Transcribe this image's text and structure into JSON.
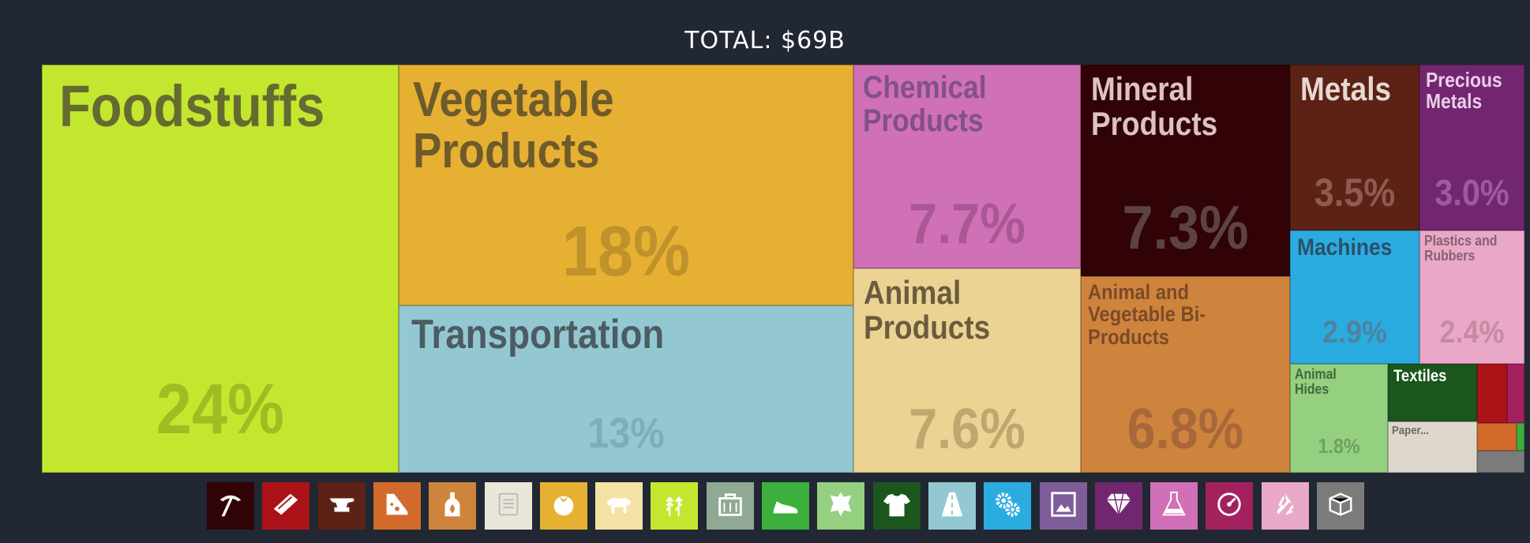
{
  "title": "TOTAL: $69B",
  "chart_data": {
    "type": "treemap",
    "title": "TOTAL: $69B",
    "total": "$69B",
    "categories": [
      {
        "name": "Foodstuffs",
        "share": 24,
        "label": "24%",
        "color": "#c3e72f"
      },
      {
        "name": "Vegetable Products",
        "share": 18,
        "label": "18%",
        "color": "#e6b032"
      },
      {
        "name": "Transportation",
        "share": 13,
        "label": "13%",
        "color": "#93c8d2"
      },
      {
        "name": "Chemical Products",
        "share": 7.7,
        "label": "7.7%",
        "color": "#d070b6"
      },
      {
        "name": "Animal Products",
        "share": 7.6,
        "label": "7.6%",
        "color": "#ebd394"
      },
      {
        "name": "Mineral Products",
        "share": 7.3,
        "label": "7.3%",
        "color": "#310306"
      },
      {
        "name": "Animal and Vegetable Bi-Products",
        "share": 6.8,
        "label": "6.8%",
        "color": "#cf843d"
      },
      {
        "name": "Metals",
        "share": 3.5,
        "label": "3.5%",
        "color": "#5b2215"
      },
      {
        "name": "Precious Metals",
        "share": 3.0,
        "label": "3.0%",
        "color": "#732670"
      },
      {
        "name": "Machines",
        "share": 2.9,
        "label": "2.9%",
        "color": "#2bace0"
      },
      {
        "name": "Plastics and Rubbers",
        "share": 2.4,
        "label": "2.4%",
        "color": "#e9a8c8"
      },
      {
        "name": "Animal Hides",
        "share": 1.8,
        "label": "1.8%",
        "color": "#95cf80"
      },
      {
        "name": "Textiles",
        "share": null,
        "label": "",
        "color": "#1a561d"
      },
      {
        "name": "Paper...",
        "share": null,
        "label": "",
        "color": "#ddd7cc"
      },
      {
        "name": "",
        "share": null,
        "label": "",
        "color": "#ab1319"
      },
      {
        "name": "",
        "share": null,
        "label": "",
        "color": "#a4215f"
      },
      {
        "name": "",
        "share": null,
        "label": "",
        "color": "#d26a2c"
      },
      {
        "name": "",
        "share": null,
        "label": "",
        "color": "#3daf3c"
      },
      {
        "name": "",
        "share": null,
        "label": "",
        "color": "#7b7b7b"
      }
    ]
  },
  "legend_icons": [
    {
      "icon": "pickaxe-icon",
      "color": "#310306"
    },
    {
      "icon": "wood-plank-icon",
      "color": "#ab1319"
    },
    {
      "icon": "anvil-icon",
      "color": "#5b2215"
    },
    {
      "icon": "stone-icon",
      "color": "#d26a2c"
    },
    {
      "icon": "bottle-icon",
      "color": "#cf843d"
    },
    {
      "icon": "scroll-icon",
      "color": "#ebe6da"
    },
    {
      "icon": "tomato-icon",
      "color": "#e6b032"
    },
    {
      "icon": "cow-icon",
      "color": "#f4e2a5"
    },
    {
      "icon": "wheat-icon",
      "color": "#c3e72f"
    },
    {
      "icon": "toolbox-icon",
      "color": "#8fa994"
    },
    {
      "icon": "shoe-icon",
      "color": "#3daf3c"
    },
    {
      "icon": "animal-hide-icon",
      "color": "#95cf80"
    },
    {
      "icon": "shirt-icon",
      "color": "#1a561d"
    },
    {
      "icon": "road-icon",
      "color": "#93c8d2"
    },
    {
      "icon": "gears-icon",
      "color": "#2bace0"
    },
    {
      "icon": "picture-frame-icon",
      "color": "#7e5d99"
    },
    {
      "icon": "diamond-icon",
      "color": "#732670"
    },
    {
      "icon": "flask-icon",
      "color": "#d070b6"
    },
    {
      "icon": "gauge-icon",
      "color": "#a4215f"
    },
    {
      "icon": "recycle-icon",
      "color": "#e9a8c8"
    },
    {
      "icon": "boxes-icon",
      "color": "#7b7b7b"
    }
  ]
}
